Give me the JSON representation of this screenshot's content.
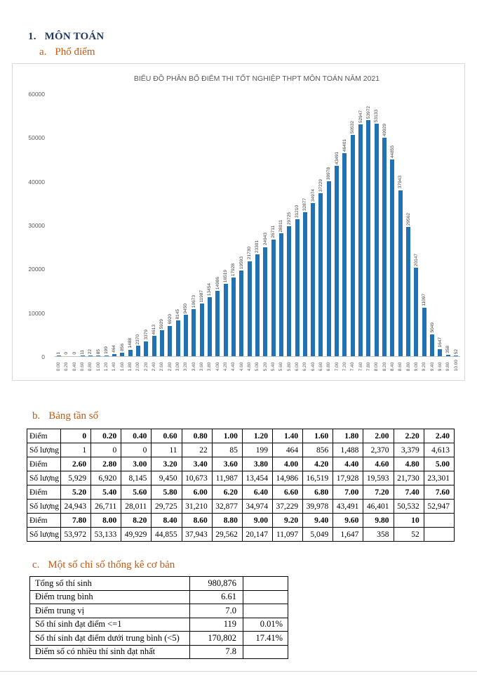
{
  "colors": {
    "heading": "#1F3864",
    "accent": "#C45911",
    "bar": "#2171B5",
    "chart_border": "#D9D9D9",
    "chart_text": "#595959"
  },
  "page": {
    "heading_number": "1.",
    "heading": "MÔN TOÁN",
    "sections": {
      "a": {
        "letter": "a.",
        "label": "Phổ điểm"
      },
      "b": {
        "letter": "b.",
        "label": "Bảng tần số"
      },
      "c": {
        "letter": "c.",
        "label": "Một số chỉ số thống kê cơ bản"
      }
    }
  },
  "chart_data": {
    "type": "bar",
    "title": "BIỂU ĐỒ PHÂN BỐ ĐIỂM THI TỐT NGHIỆP THPT MÔN TOÁN NĂM 2021",
    "xlabel": "",
    "ylabel": "",
    "ylim": [
      0,
      60000
    ],
    "yticks": [
      0,
      10000,
      20000,
      30000,
      40000,
      50000,
      60000
    ],
    "grid": false,
    "legend": null,
    "x": [
      "0.00",
      "0.20",
      "0.40",
      "0.60",
      "0.80",
      "1.00",
      "1.20",
      "1.40",
      "1.60",
      "1.80",
      "2.00",
      "2.20",
      "2.40",
      "2.60",
      "2.80",
      "3.00",
      "3.20",
      "3.40",
      "3.60",
      "3.80",
      "4.00",
      "4.20",
      "4.40",
      "4.60",
      "4.80",
      "5.00",
      "5.20",
      "5.40",
      "5.60",
      "5.80",
      "6.00",
      "6.20",
      "6.40",
      "6.60",
      "6.80",
      "7.00",
      "7.20",
      "7.40",
      "7.60",
      "7.80",
      "8.00",
      "8.20",
      "8.40",
      "8.60",
      "8.80",
      "9.00",
      "9.20",
      "9.40",
      "9.60",
      "9.80",
      "10.00"
    ],
    "values": [
      1,
      0,
      0,
      11,
      22,
      85,
      199,
      464,
      856,
      1488,
      2370,
      3379,
      4613,
      5929,
      6920,
      8145,
      9450,
      10673,
      11987,
      13454,
      14986,
      16519,
      17928,
      19593,
      21730,
      23301,
      24943,
      26711,
      28011,
      29725,
      31210,
      32877,
      34974,
      37229,
      39978,
      43491,
      46401,
      50532,
      52947,
      53972,
      53133,
      49929,
      44855,
      37943,
      29562,
      20147,
      11097,
      5049,
      1647,
      358,
      52
    ],
    "bar_labels": [
      "1",
      "0",
      "0",
      "11",
      "22",
      "85",
      "199",
      "464",
      "856",
      "1488",
      "2370",
      "3379",
      "4613",
      "5929",
      "6920",
      "8145",
      "9450",
      "10673",
      "11987",
      "13454",
      "14986",
      "16519",
      "17928",
      "19593",
      "21730",
      "23301",
      "24943",
      "26711",
      "28011",
      "29725",
      "31210",
      "32877",
      "34974",
      "37229",
      "39978",
      "43491",
      "46401",
      "50532",
      "52947",
      "53972",
      "53133",
      "49929",
      "44855",
      "37943",
      "29562",
      "20147",
      "11097",
      "5049",
      "1647",
      "358",
      "52"
    ]
  },
  "freq_table": {
    "rows": [
      {
        "header": true,
        "cells": [
          "Điểm",
          "0",
          "0.20",
          "0.40",
          "0.60",
          "0.80",
          "1.00",
          "1.20",
          "1.40",
          "1.60",
          "1.80",
          "2.00",
          "2.20",
          "2.40"
        ]
      },
      {
        "header": false,
        "cells": [
          "Số lượng",
          "1",
          "0",
          "0",
          "11",
          "22",
          "85",
          "199",
          "464",
          "856",
          "1,488",
          "2,370",
          "3,379",
          "4,613"
        ]
      },
      {
        "header": true,
        "cells": [
          "Điểm",
          "2.60",
          "2.80",
          "3.00",
          "3.20",
          "3.40",
          "3.60",
          "3.80",
          "4.00",
          "4.20",
          "4.40",
          "4.60",
          "4.80",
          "5.00"
        ]
      },
      {
        "header": false,
        "cells": [
          "Số lượng",
          "5,929",
          "6,920",
          "8,145",
          "9,450",
          "10,673",
          "11,987",
          "13,454",
          "14,986",
          "16,519",
          "17,928",
          "19,593",
          "21,730",
          "23,301"
        ]
      },
      {
        "header": true,
        "cells": [
          "Điểm",
          "5.20",
          "5.40",
          "5.60",
          "5.80",
          "6.00",
          "6.20",
          "6.40",
          "6.60",
          "6.80",
          "7.00",
          "7.20",
          "7.40",
          "7.60"
        ]
      },
      {
        "header": false,
        "cells": [
          "Số lượng",
          "24,943",
          "26,711",
          "28,011",
          "29,725",
          "31,210",
          "32,877",
          "34,974",
          "37,229",
          "39,978",
          "43,491",
          "46,401",
          "50,532",
          "52,947"
        ]
      },
      {
        "header": true,
        "cells": [
          "Điểm",
          "7.80",
          "8.00",
          "8.20",
          "8.40",
          "8.60",
          "8.80",
          "9.00",
          "9.20",
          "9.40",
          "9.60",
          "9.80",
          "10",
          ""
        ]
      },
      {
        "header": false,
        "cells": [
          "Số lượng",
          "53,972",
          "53,133",
          "49,929",
          "44,855",
          "37,943",
          "29,562",
          "20,147",
          "11,097",
          "5,049",
          "1,647",
          "358",
          "52",
          ""
        ]
      }
    ]
  },
  "stats_table": {
    "rows": [
      {
        "label": "Tổng số thí sinh",
        "value": "980,876",
        "pct": ""
      },
      {
        "label": "Điểm trung bình",
        "value": "6.61",
        "pct": ""
      },
      {
        "label": "Điểm trung vị",
        "value": "7.0",
        "pct": ""
      },
      {
        "label": "Số thí sinh đạt điểm <=1",
        "value": "119",
        "pct": "0.01%"
      },
      {
        "label": "Số thí sinh đạt điểm dưới trung bình (<5)",
        "value": "170,802",
        "pct": "17.41%"
      },
      {
        "label": "Điểm số có nhiều thí sinh đạt nhất",
        "value": "7.8",
        "pct": ""
      }
    ]
  }
}
